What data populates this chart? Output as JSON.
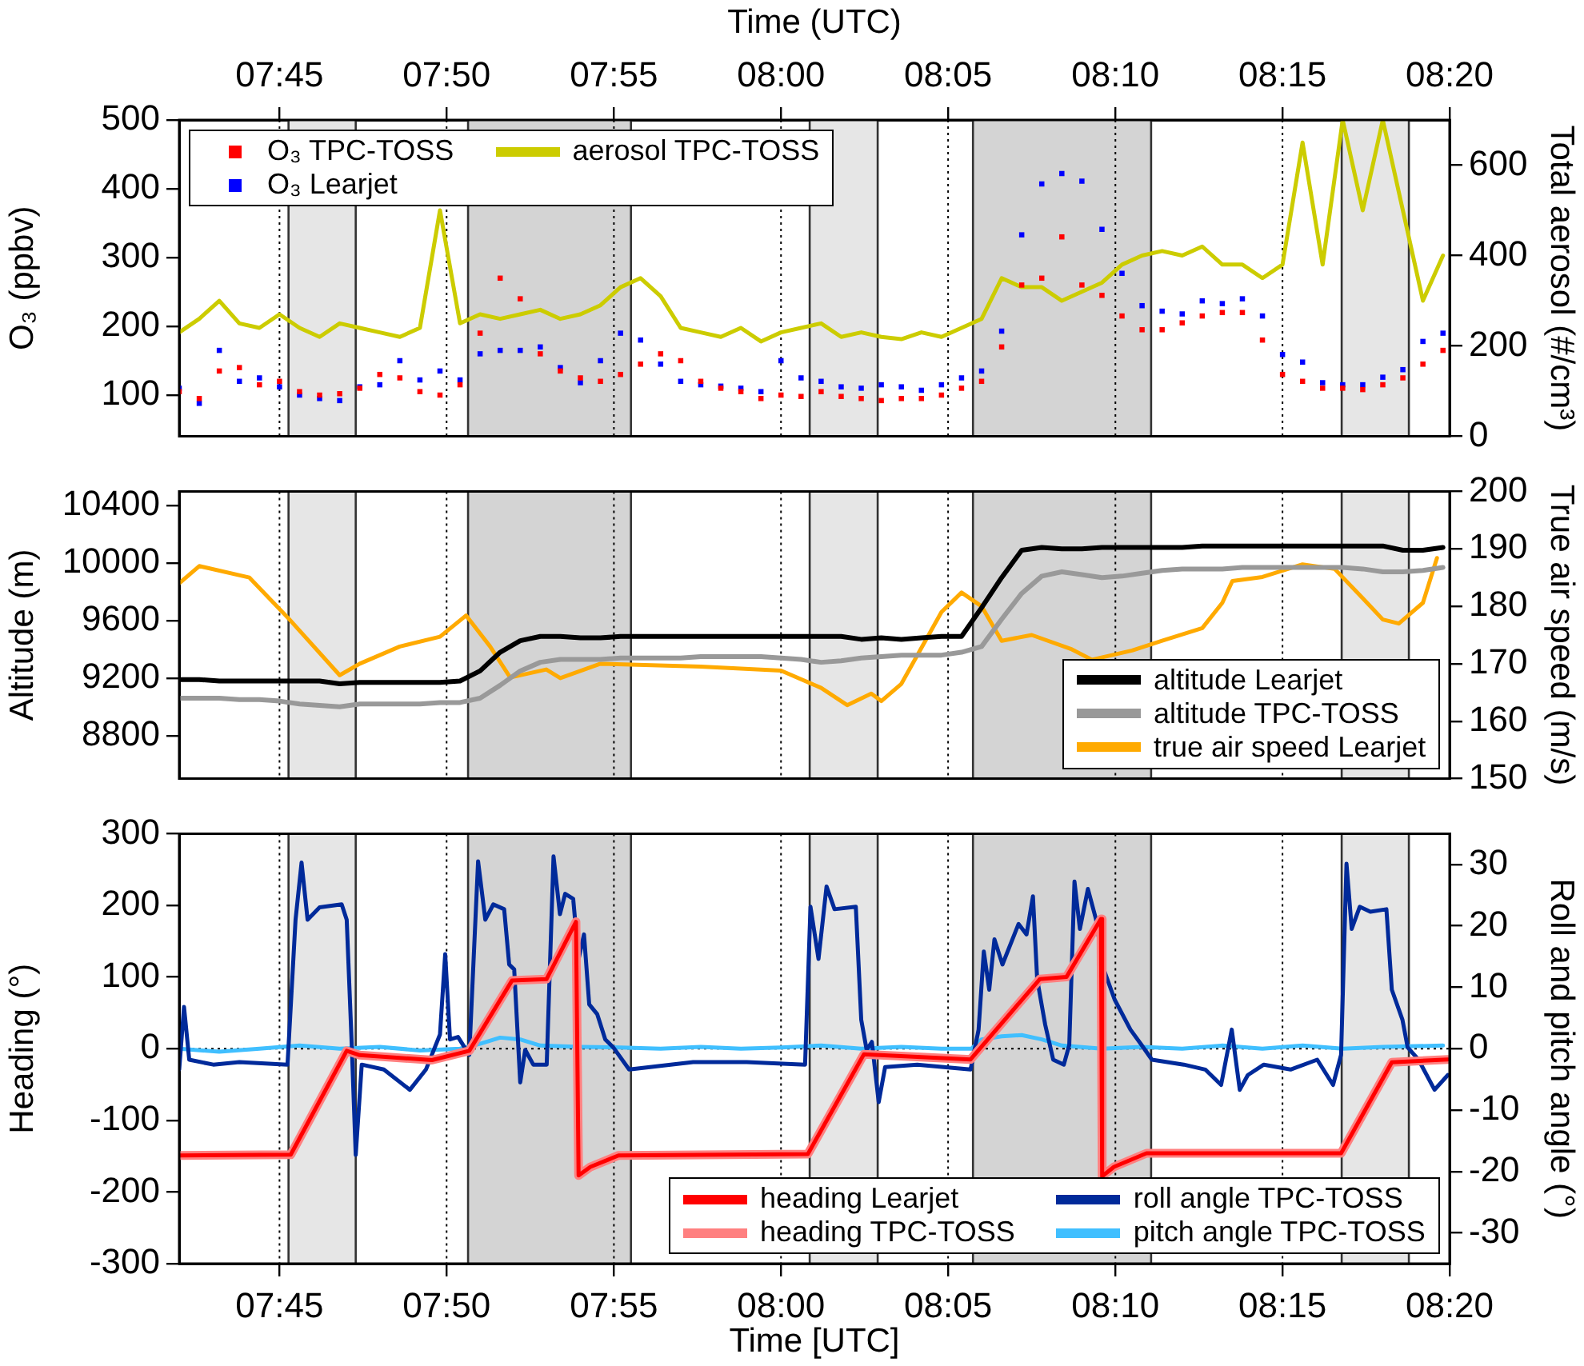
{
  "chart_data": [
    {
      "type": "scatter",
      "xlabel": "Time (UTC)",
      "ylabel": "O₃ (ppbv)",
      "y2label": "Total aerosol (#/cm³)",
      "x": [
        7.7,
        7.71,
        7.72,
        7.73,
        7.74,
        7.75,
        7.76,
        7.77,
        7.78,
        7.79,
        7.8,
        7.81,
        7.82,
        7.83,
        7.84,
        7.85,
        7.86,
        7.87,
        7.88,
        7.89,
        7.9,
        7.91,
        7.92,
        7.93,
        7.94,
        7.95,
        7.96,
        7.97,
        7.98,
        7.99,
        8.0,
        8.01,
        8.02,
        8.03,
        8.04,
        8.05,
        8.06,
        8.07,
        8.08,
        8.09,
        8.1,
        8.11,
        8.12,
        8.13,
        8.14,
        8.15,
        8.16,
        8.17,
        8.18,
        8.19,
        8.2,
        8.21,
        8.22,
        8.23,
        8.24,
        8.25,
        8.26,
        8.27,
        8.28,
        8.29,
        8.3,
        8.31,
        8.32,
        8.33
      ],
      "series": [
        {
          "name": "O₃ TPC-TOSS",
          "color": "#ff0000",
          "marker": "square",
          "values": [
            105,
            95,
            135,
            140,
            115,
            120,
            105,
            100,
            102,
            110,
            130,
            125,
            105,
            100,
            115,
            190,
            270,
            240,
            160,
            135,
            125,
            120,
            130,
            145,
            160,
            150,
            120,
            110,
            105,
            95,
            100,
            98,
            105,
            98,
            95,
            92,
            95,
            95,
            100,
            110,
            120,
            170,
            260,
            270,
            330,
            260,
            245,
            215,
            195,
            195,
            205,
            215,
            220,
            220,
            180,
            130,
            120,
            110,
            110,
            108,
            115,
            125,
            145,
            165
          ]
        },
        {
          "name": "O₃ Learjet",
          "color": "#0000ff",
          "marker": "square",
          "values": [
            110,
            88,
            165,
            120,
            125,
            112,
            100,
            95,
            92,
            112,
            115,
            150,
            122,
            135,
            122,
            160,
            165,
            165,
            170,
            140,
            118,
            150,
            190,
            180,
            145,
            120,
            115,
            113,
            110,
            105,
            150,
            125,
            120,
            112,
            110,
            115,
            112,
            107,
            115,
            125,
            135,
            193,
            333,
            407,
            422,
            411,
            341,
            277,
            230,
            222,
            218,
            237,
            233,
            240,
            215,
            159,
            148,
            118,
            115,
            115,
            126,
            137,
            178,
            190
          ]
        },
        {
          "name": "aerosol TPC-TOSS",
          "type": "line",
          "axis": "y2",
          "color": "#cccc00",
          "values": [
            230,
            260,
            300,
            250,
            240,
            270,
            240,
            220,
            250,
            240,
            230,
            220,
            240,
            500,
            250,
            270,
            260,
            270,
            280,
            260,
            270,
            290,
            330,
            350,
            310,
            240,
            230,
            220,
            240,
            210,
            230,
            240,
            250,
            220,
            230,
            220,
            215,
            230,
            220,
            240,
            260,
            350,
            330,
            330,
            300,
            320,
            340,
            380,
            400,
            410,
            400,
            420,
            380,
            380,
            350,
            380,
            650,
            380,
            700,
            500,
            700,
            500,
            300,
            400
          ]
        }
      ],
      "xlim": [
        7.7,
        8.3333
      ],
      "xticks": [
        {
          "value": 7.75,
          "label": "07:45"
        },
        {
          "value": 7.8333,
          "label": "07:50"
        },
        {
          "value": 7.9167,
          "label": "07:55"
        },
        {
          "value": 8.0,
          "label": "08:00"
        },
        {
          "value": 8.0833,
          "label": "08:05"
        },
        {
          "value": 8.1667,
          "label": "08:10"
        },
        {
          "value": 8.25,
          "label": "08:15"
        },
        {
          "value": 8.3333,
          "label": "08:20"
        }
      ],
      "ylim": [
        40,
        500
      ],
      "yticks": [
        100,
        200,
        300,
        400,
        500
      ],
      "y2lim": [
        0,
        700
      ],
      "y2ticks": [
        0,
        200,
        400,
        600
      ],
      "grid": "x",
      "legend": "top left",
      "bands": [
        {
          "axis": "x",
          "from": 7.7545,
          "to": 7.788,
          "color": "#e6e6e6"
        },
        {
          "axis": "x",
          "from": 7.844,
          "to": 7.9252,
          "color": "#d4d4d4"
        },
        {
          "axis": "x",
          "from": 8.0143,
          "to": 8.0482,
          "color": "#e6e6e6"
        },
        {
          "axis": "x",
          "from": 8.0957,
          "to": 8.1845,
          "color": "#d4d4d4"
        },
        {
          "axis": "x",
          "from": 8.2795,
          "to": 8.313,
          "color": "#e6e6e6"
        }
      ]
    },
    {
      "type": "line",
      "ylabel": "Altitude (m)",
      "y2label": "True air speed (m/s)",
      "x": [
        7.7,
        7.71,
        7.72,
        7.73,
        7.74,
        7.75,
        7.76,
        7.77,
        7.78,
        7.79,
        7.8,
        7.81,
        7.82,
        7.83,
        7.84,
        7.85,
        7.86,
        7.87,
        7.88,
        7.89,
        7.9,
        7.91,
        7.92,
        7.93,
        7.94,
        7.95,
        7.96,
        7.97,
        7.98,
        7.99,
        8.0,
        8.01,
        8.02,
        8.03,
        8.04,
        8.05,
        8.06,
        8.07,
        8.08,
        8.09,
        8.1,
        8.11,
        8.12,
        8.13,
        8.14,
        8.15,
        8.16,
        8.17,
        8.18,
        8.19,
        8.2,
        8.21,
        8.22,
        8.23,
        8.24,
        8.25,
        8.26,
        8.27,
        8.28,
        8.29,
        8.3,
        8.31,
        8.32,
        8.33
      ],
      "series": [
        {
          "name": "altitude Learjet",
          "color": "#000000",
          "values": [
            9190,
            9190,
            9180,
            9180,
            9180,
            9180,
            9180,
            9180,
            9160,
            9170,
            9170,
            9170,
            9170,
            9170,
            9180,
            9250,
            9380,
            9460,
            9490,
            9490,
            9480,
            9480,
            9490,
            9490,
            9490,
            9490,
            9490,
            9490,
            9490,
            9490,
            9490,
            9490,
            9490,
            9490,
            9470,
            9480,
            9470,
            9480,
            9490,
            9490,
            9690,
            9900,
            10090,
            10110,
            10100,
            10100,
            10110,
            10110,
            10110,
            10110,
            10110,
            10120,
            10120,
            10120,
            10120,
            10120,
            10120,
            10120,
            10120,
            10120,
            10120,
            10090,
            10090,
            10110
          ]
        },
        {
          "name": "altitude TPC-TOSS",
          "color": "#999999",
          "values": [
            9060,
            9060,
            9060,
            9050,
            9050,
            9040,
            9020,
            9010,
            9000,
            9020,
            9020,
            9020,
            9020,
            9030,
            9030,
            9060,
            9150,
            9250,
            9310,
            9330,
            9330,
            9330,
            9340,
            9340,
            9340,
            9340,
            9350,
            9350,
            9350,
            9350,
            9340,
            9330,
            9310,
            9320,
            9340,
            9350,
            9360,
            9360,
            9360,
            9380,
            9420,
            9610,
            9790,
            9910,
            9940,
            9920,
            9900,
            9910,
            9930,
            9950,
            9960,
            9960,
            9960,
            9970,
            9970,
            9970,
            9970,
            9970,
            9970,
            9960,
            9940,
            9940,
            9950,
            9970
          ]
        },
        {
          "name": "true air speed Learjet",
          "axis": "y2",
          "color": "#ffaa00",
          "x": [
            7.7,
            7.71,
            7.735,
            7.755,
            7.78,
            7.79,
            7.81,
            7.83,
            7.843,
            7.855,
            7.865,
            7.883,
            7.89,
            7.91,
            7.96,
            8.0,
            8.02,
            8.033,
            8.045,
            8.05,
            8.06,
            8.08,
            8.09,
            8.1,
            8.11,
            8.125,
            8.145,
            8.155,
            8.175,
            8.19,
            8.21,
            8.22,
            8.225,
            8.24,
            8.26,
            8.276,
            8.29,
            8.3,
            8.308,
            8.32,
            8.327
          ],
          "values": [
            184,
            187,
            185,
            177.7,
            168,
            170,
            173,
            174.7,
            178.4,
            173,
            167.6,
            169,
            167.5,
            170,
            169.5,
            168.8,
            165.8,
            162.8,
            164.8,
            163.5,
            166.5,
            179,
            182.4,
            180,
            174,
            175,
            172.5,
            170.7,
            172.3,
            174,
            176.2,
            180.6,
            184.4,
            185.1,
            187.3,
            186.5,
            181.4,
            177.7,
            177,
            180.6,
            188.4
          ]
        }
      ],
      "xlim": [
        7.7,
        8.3333
      ],
      "xticks": [
        {
          "value": 7.75,
          "label": null
        },
        {
          "value": 7.8333,
          "label": null
        },
        {
          "value": 7.9167,
          "label": null
        },
        {
          "value": 8.0,
          "label": null
        },
        {
          "value": 8.0833,
          "label": null
        },
        {
          "value": 8.1667,
          "label": null
        },
        {
          "value": 8.25,
          "label": null
        },
        {
          "value": 8.3333,
          "label": null
        }
      ],
      "ylim": [
        8500,
        10500
      ],
      "yticks": [
        8800,
        9200,
        9600,
        10000,
        10400
      ],
      "y2lim": [
        150,
        200
      ],
      "y2ticks": [
        150,
        160,
        170,
        180,
        190,
        200
      ],
      "tick_labels": "y",
      "grid": "x",
      "legend": "bottom right",
      "bands": [
        {
          "axis": "x",
          "from": 7.7545,
          "to": 7.788,
          "color": "#e6e6e6"
        },
        {
          "axis": "x",
          "from": 7.844,
          "to": 7.9252,
          "color": "#d4d4d4"
        },
        {
          "axis": "x",
          "from": 8.0143,
          "to": 8.0482,
          "color": "#e6e6e6"
        },
        {
          "axis": "x",
          "from": 8.0957,
          "to": 8.1845,
          "color": "#d4d4d4"
        },
        {
          "axis": "x",
          "from": 8.2795,
          "to": 8.313,
          "color": "#e6e6e6"
        }
      ]
    },
    {
      "type": "line",
      "xlabel": "Time [UTC]",
      "ylabel": "Heading (°)",
      "y2label": "Roll and pitch angle (°)",
      "series": [
        {
          "name": "heading Learjet",
          "color": "#ff0000",
          "x": [
            7.7,
            7.7556,
            7.7835,
            7.79,
            7.826,
            7.8446,
            7.8659,
            7.8831,
            7.8978,
            7.8991,
            7.905,
            7.919,
            8.0134,
            8.0413,
            8.0945,
            8.129,
            8.1423,
            8.1595,
            8.1601,
            8.166,
            8.1822,
            8.2792,
            8.3045,
            8.3324
          ],
          "values": [
            -149,
            -148,
            -3,
            -9,
            -16,
            -3,
            95,
            97,
            177,
            -177,
            -165,
            -149,
            -147,
            -8,
            -15,
            97,
            100,
            181,
            -178,
            -165,
            -146,
            -146,
            -19,
            -15
          ]
        },
        {
          "name": "heading TPC-TOSS",
          "color": "#ff8080",
          "x": [
            7.7,
            7.7556,
            7.7835,
            7.79,
            7.826,
            7.8446,
            7.8659,
            7.8831,
            7.8978,
            7.8991,
            7.905,
            7.919,
            8.0134,
            8.0413,
            8.0945,
            8.129,
            8.1423,
            8.1595,
            8.1601,
            8.166,
            8.1822,
            8.2792,
            8.3045,
            8.3324
          ],
          "values": [
            -149,
            -148,
            -3,
            -9,
            -16,
            -3,
            95,
            97,
            177,
            -177,
            -165,
            -149,
            -147,
            -8,
            -15,
            97,
            100,
            181,
            -178,
            -165,
            -146,
            -146,
            -19,
            -15
          ]
        },
        {
          "name": "roll angle TPC-TOSS",
          "axis": "y2",
          "color": "#002a9a",
          "x": [
            7.7,
            7.7024,
            7.705,
            7.717,
            7.73,
            7.754,
            7.758,
            7.761,
            7.764,
            7.77,
            7.781,
            7.7835,
            7.786,
            7.788,
            7.791,
            7.802,
            7.815,
            7.823,
            7.83,
            7.8326,
            7.835,
            7.839,
            7.8446,
            7.849,
            7.8526,
            7.8566,
            7.862,
            7.8645,
            7.867,
            7.87,
            7.8725,
            7.8765,
            7.8832,
            7.8866,
            7.8898,
            7.8924,
            7.8964,
            7.8991,
            7.9018,
            7.9044,
            7.9084,
            7.9124,
            7.9164,
            7.9243,
            7.9562,
            7.9829,
            8.012,
            8.0147,
            8.0187,
            8.0227,
            8.0267,
            8.0373,
            8.04,
            8.0427,
            8.0453,
            8.0487,
            8.0519,
            8.0679,
            8.0945,
            8.0985,
            8.1011,
            8.1038,
            8.1064,
            8.1104,
            8.1184,
            8.1224,
            8.1256,
            8.1277,
            8.1317,
            8.1357,
            8.141,
            8.1437,
            8.1463,
            8.149,
            8.153,
            8.157,
            8.1609,
            8.1663,
            8.1742,
            8.1795,
            8.1849,
            8.2008,
            8.2115,
            8.2194,
            8.2247,
            8.2287,
            8.2327,
            8.2407,
            8.254,
            8.2673,
            8.2752,
            8.2792,
            8.2819,
            8.2845,
            8.2885,
            8.2938,
            8.3018,
            8.3045,
            8.3098,
            8.3124,
            8.3178,
            8.3258,
            8.3324
          ],
          "values": [
            -3.4,
            6.8,
            -1.8,
            -2.6,
            -2.2,
            -2.6,
            21,
            30.3,
            21,
            23,
            23.5,
            21,
            0.7,
            -17.3,
            -2.6,
            -3.4,
            -6.7,
            -3.4,
            2.3,
            15.4,
            1.5,
            1.9,
            -1,
            30.5,
            21,
            23.5,
            22.7,
            13.7,
            12.9,
            -5.5,
            -0.2,
            -2.6,
            -2.6,
            31.3,
            21.9,
            25.2,
            24.4,
            14.6,
            18.6,
            7.2,
            5.6,
            1.5,
            0.2,
            -3.4,
            -2.2,
            -2.2,
            -2.6,
            23.1,
            14.6,
            26.4,
            22.7,
            23.1,
            4.7,
            -0.2,
            1.1,
            -8.7,
            -3,
            -2.6,
            -3.4,
            3.1,
            15.8,
            9.6,
            17.8,
            13.7,
            20.3,
            18.6,
            24.8,
            11.3,
            3.9,
            -1.8,
            -2.6,
            0.6,
            27.2,
            19.5,
            26,
            21.1,
            12.9,
            8,
            3.1,
            0.7,
            -1.8,
            -2.6,
            -3.4,
            -5.9,
            3.1,
            -6.7,
            -4.3,
            -2.6,
            -3.4,
            -1.8,
            -5.9,
            -1,
            30.1,
            19.5,
            23.1,
            22.3,
            22.7,
            9.6,
            4.7,
            0.2,
            -1.8,
            -6.7,
            -4.3
          ]
        },
        {
          "name": "pitch angle TPC-TOSS",
          "axis": "y2",
          "color": "#40bfff",
          "x": [
            7.7,
            7.72,
            7.74,
            7.76,
            7.78,
            7.8,
            7.82,
            7.84,
            7.85,
            7.86,
            7.87,
            7.88,
            7.9,
            7.92,
            7.94,
            7.96,
            7.98,
            8.0,
            8.02,
            8.04,
            8.06,
            8.08,
            8.095,
            8.1,
            8.11,
            8.12,
            8.13,
            8.14,
            8.16,
            8.18,
            8.2,
            8.22,
            8.24,
            8.26,
            8.28,
            8.3,
            8.33
          ],
          "values": [
            0,
            -0.5,
            0,
            0.5,
            0,
            0.3,
            -0.3,
            0,
            0.8,
            1.8,
            1.5,
            0.5,
            0.3,
            0.2,
            0,
            0.3,
            0,
            0.2,
            0.5,
            0,
            0.3,
            0,
            0,
            1.5,
            2,
            2.2,
            1.5,
            0.5,
            0,
            0.3,
            0,
            0.5,
            0,
            0.5,
            0,
            0.3,
            0.5
          ]
        }
      ],
      "xlim": [
        7.7,
        8.3333
      ],
      "xticks": [
        {
          "value": 7.75,
          "label": "07:45"
        },
        {
          "value": 7.8333,
          "label": "07:50"
        },
        {
          "value": 7.9167,
          "label": "07:55"
        },
        {
          "value": 8.0,
          "label": "08:00"
        },
        {
          "value": 8.0833,
          "label": "08:05"
        },
        {
          "value": 8.1667,
          "label": "08:10"
        },
        {
          "value": 8.25,
          "label": "08:15"
        },
        {
          "value": 8.3333,
          "label": "08:20"
        }
      ],
      "ylim": [
        -300,
        300
      ],
      "yticks": [
        -300,
        -200,
        -100,
        0,
        100,
        200,
        300
      ],
      "y2lim": [
        -35,
        35
      ],
      "y2ticks": [
        -30,
        -20,
        -10,
        0,
        10,
        20,
        30
      ],
      "grid": "x",
      "legend": "bottom right",
      "ref_lines": [
        {
          "axis": "y",
          "value": 0,
          "line_style": "dotted",
          "color": "#000000"
        }
      ],
      "bands": [
        {
          "axis": "x",
          "from": 7.7545,
          "to": 7.788,
          "color": "#e6e6e6"
        },
        {
          "axis": "x",
          "from": 7.844,
          "to": 7.9252,
          "color": "#d4d4d4"
        },
        {
          "axis": "x",
          "from": 8.0143,
          "to": 8.0482,
          "color": "#e6e6e6"
        },
        {
          "axis": "x",
          "from": 8.0957,
          "to": 8.1845,
          "color": "#d4d4d4"
        },
        {
          "axis": "x",
          "from": 8.2795,
          "to": 8.313,
          "color": "#e6e6e6"
        }
      ]
    }
  ]
}
